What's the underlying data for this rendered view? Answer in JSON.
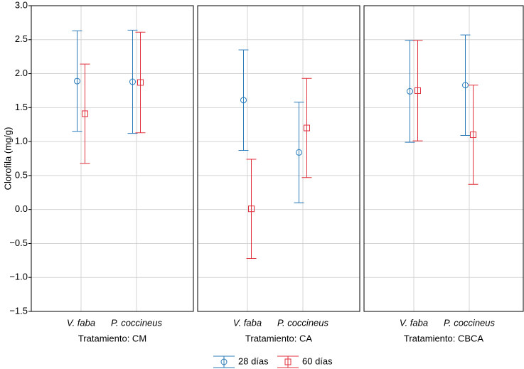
{
  "chart_data": {
    "type": "errorbar",
    "ylabel": "Clorofila (mg/g)",
    "ylim": [
      -1.5,
      3.0
    ],
    "yticks": [
      {
        "value": 3,
        "label": "3.0"
      },
      {
        "value": 2.5,
        "label": "2.5"
      },
      {
        "value": 2,
        "label": "2.0"
      },
      {
        "value": 1.5,
        "label": "1.5"
      },
      {
        "value": 1,
        "label": "1.0"
      },
      {
        "value": 0.5,
        "label": "0.5"
      },
      {
        "value": 0,
        "label": "0.0"
      },
      {
        "value": -0.5,
        "label": "−0.5"
      },
      {
        "value": -1,
        "label": "−1.0"
      },
      {
        "value": -1.5,
        "label": "−1.5"
      }
    ],
    "grid": true,
    "series": [
      {
        "name": "28 días",
        "color": "#2b7bba",
        "marker": "circle"
      },
      {
        "name": "60 días",
        "color": "#e0323c",
        "marker": "square"
      }
    ],
    "panels": [
      {
        "xlabel": "Tratamiento: CM",
        "categories": [
          "V. faba",
          "P. coccineus"
        ],
        "series": [
          {
            "values": [
              1.89,
              1.88
            ],
            "errors": [
              0.74,
              0.76
            ]
          },
          {
            "values": [
              1.41,
              1.87
            ],
            "errors": [
              0.73,
              0.74
            ]
          }
        ]
      },
      {
        "xlabel": "Tratamiento: CA",
        "categories": [
          "V. faba",
          "P. coccineus"
        ],
        "series": [
          {
            "values": [
              1.61,
              0.84
            ],
            "errors": [
              0.74,
              0.74
            ]
          },
          {
            "values": [
              0.01,
              1.2
            ],
            "errors": [
              0.73,
              0.73
            ]
          }
        ]
      },
      {
        "xlabel": "Tratamiento: CBCA",
        "categories": [
          "V. faba",
          "P. coccineus"
        ],
        "series": [
          {
            "values": [
              1.74,
              1.83
            ],
            "errors": [
              0.75,
              0.74
            ]
          },
          {
            "values": [
              1.75,
              1.1
            ],
            "errors": [
              0.74,
              0.73
            ]
          }
        ]
      }
    ]
  }
}
